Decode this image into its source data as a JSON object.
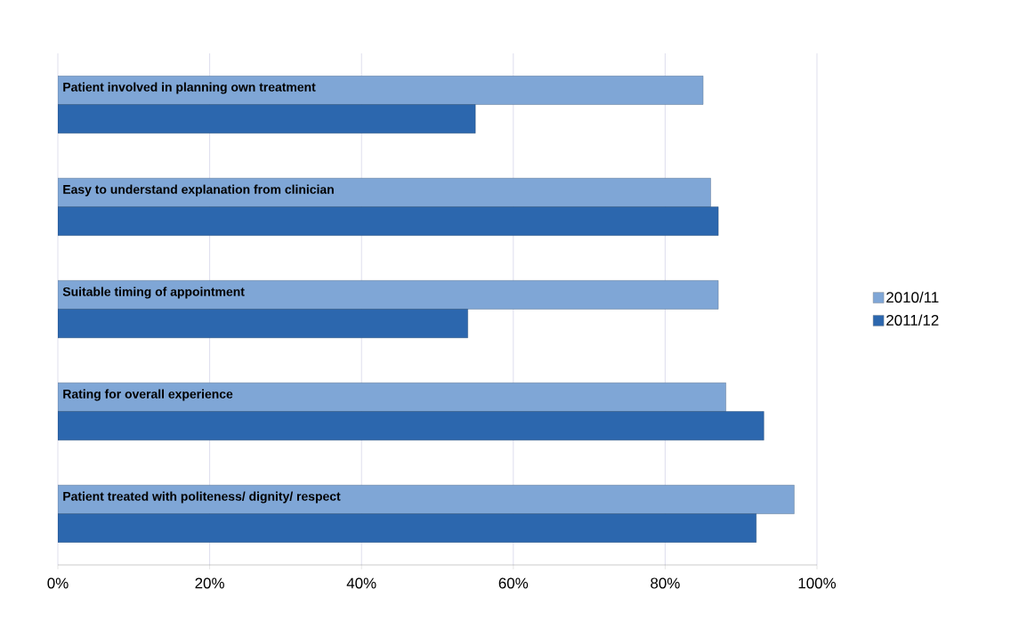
{
  "chart_data": {
    "type": "bar",
    "orientation": "horizontal",
    "categories": [
      "Patient involved in planning own treatment",
      "Easy to understand explanation from clinician",
      "Suitable timing of appointment",
      "Rating for overall experience",
      "Patient treated with politeness/ dignity/ respect"
    ],
    "series": [
      {
        "name": "2010/11",
        "color": "#7fa6d6",
        "values": [
          85,
          86,
          87,
          88,
          97
        ]
      },
      {
        "name": "2011/12",
        "color": "#2c67ae",
        "values": [
          55,
          87,
          54,
          93,
          92
        ]
      }
    ],
    "xlim": [
      0,
      100
    ],
    "xticks": [
      {
        "value": 0,
        "label": "0%"
      },
      {
        "value": 20,
        "label": "20%"
      },
      {
        "value": 40,
        "label": "40%"
      },
      {
        "value": 60,
        "label": "60%"
      },
      {
        "value": 80,
        "label": "80%"
      },
      {
        "value": 100,
        "label": "100%"
      }
    ],
    "grid": "x",
    "legend": "right"
  }
}
